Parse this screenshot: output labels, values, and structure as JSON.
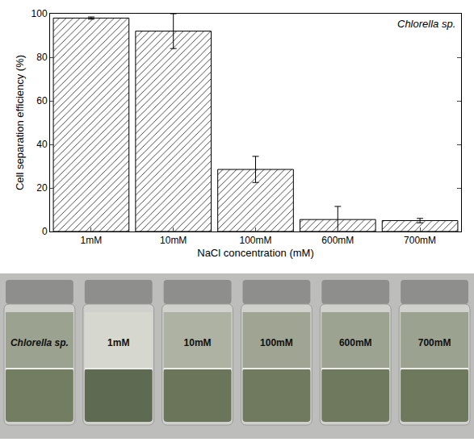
{
  "chart_data": {
    "type": "bar",
    "annotations": [
      "Chlorella sp."
    ],
    "x_label": "NaCl concentration (mM)",
    "y_label": "Cell separation efficiency (%)",
    "categories": [
      "1mM",
      "10mM",
      "100mM",
      "600mM",
      "700mM"
    ],
    "values": [
      98,
      92,
      28.5,
      5.5,
      5
    ],
    "errors": [
      0.5,
      8,
      6,
      6,
      1
    ],
    "color": "#ffffff",
    "ylim": [
      0,
      100
    ],
    "yticks": [
      0,
      20,
      40,
      60,
      80,
      100
    ],
    "grid": false
  },
  "photo": {
    "vials": [
      {
        "label": "Chlorella sp.",
        "upper": "#9ca290",
        "lower": "#737d62"
      },
      {
        "label": "1mM",
        "upper": "#d6d7cf",
        "lower": "#5f6a52"
      },
      {
        "label": "10mM",
        "upper": "#aeb2a2",
        "lower": "#6b7559"
      },
      {
        "label": "100mM",
        "upper": "#9fa592",
        "lower": "#707a5e"
      },
      {
        "label": "600mM",
        "upper": "#9da391",
        "lower": "#6f795d"
      },
      {
        "label": "700mM",
        "upper": "#9ca290",
        "lower": "#6e785c"
      }
    ]
  }
}
